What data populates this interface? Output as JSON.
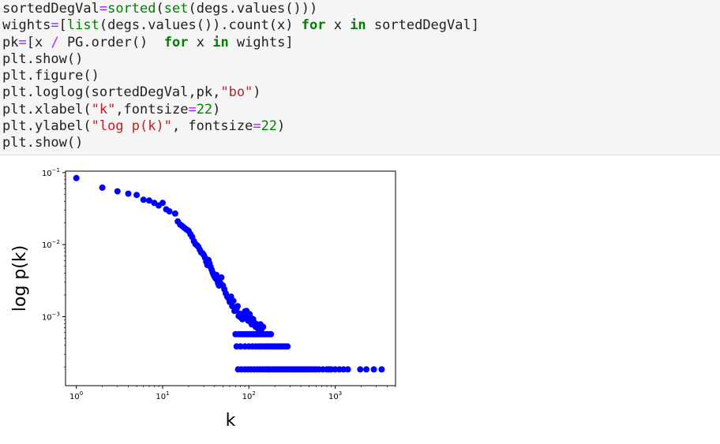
{
  "code_cell": {
    "lines": [
      [
        {
          "t": "sortedDegVal",
          "c": ""
        },
        {
          "t": "=",
          "c": "op"
        },
        {
          "t": "sorted",
          "c": "bi"
        },
        {
          "t": "(",
          "c": ""
        },
        {
          "t": "set",
          "c": "bi"
        },
        {
          "t": "(degs.values()))",
          "c": ""
        }
      ],
      [
        {
          "t": "wights",
          "c": ""
        },
        {
          "t": "=",
          "c": "op"
        },
        {
          "t": "[",
          "c": ""
        },
        {
          "t": "list",
          "c": "bi"
        },
        {
          "t": "(degs.values()).count(x) ",
          "c": ""
        },
        {
          "t": "for",
          "c": "kw"
        },
        {
          "t": " x ",
          "c": ""
        },
        {
          "t": "in",
          "c": "kw"
        },
        {
          "t": " sortedDegVal]",
          "c": ""
        }
      ],
      [
        {
          "t": "pk",
          "c": ""
        },
        {
          "t": "=",
          "c": "op"
        },
        {
          "t": "[x ",
          "c": ""
        },
        {
          "t": "/",
          "c": "op"
        },
        {
          "t": " PG.order()  ",
          "c": ""
        },
        {
          "t": "for",
          "c": "kw"
        },
        {
          "t": " x ",
          "c": ""
        },
        {
          "t": "in",
          "c": "kw"
        },
        {
          "t": " wights]",
          "c": ""
        }
      ],
      [
        {
          "t": "plt.show()",
          "c": ""
        }
      ],
      [
        {
          "t": "plt.figure()",
          "c": ""
        }
      ],
      [
        {
          "t": "plt.loglog(sortedDegVal,pk,",
          "c": ""
        },
        {
          "t": "\"bo\"",
          "c": "st"
        },
        {
          "t": ")",
          "c": ""
        }
      ],
      [
        {
          "t": "plt.xlabel(",
          "c": ""
        },
        {
          "t": "\"k\"",
          "c": "st"
        },
        {
          "t": ",fontsize",
          "c": ""
        },
        {
          "t": "=",
          "c": "op"
        },
        {
          "t": "22",
          "c": "nm"
        },
        {
          "t": ")",
          "c": ""
        }
      ],
      [
        {
          "t": "plt.ylabel(",
          "c": ""
        },
        {
          "t": "\"log p(k)\"",
          "c": "st"
        },
        {
          "t": ", fontsize",
          "c": ""
        },
        {
          "t": "=",
          "c": "op"
        },
        {
          "t": "22",
          "c": "nm"
        },
        {
          "t": ")",
          "c": ""
        }
      ],
      [
        {
          "t": "plt.show()",
          "c": ""
        }
      ]
    ]
  },
  "chart_data": {
    "type": "scatter",
    "scale": "loglog",
    "marker_color": "#0000ff",
    "xlabel": "k",
    "ylabel": "log p(k)",
    "xlim": [
      0.75,
      5000
    ],
    "ylim": [
      0.00011,
      0.105
    ],
    "x_ticks": [
      {
        "value": 1,
        "base": "10",
        "exp": "0"
      },
      {
        "value": 10,
        "base": "10",
        "exp": "1"
      },
      {
        "value": 100,
        "base": "10",
        "exp": "2"
      },
      {
        "value": 1000,
        "base": "10",
        "exp": "3"
      }
    ],
    "y_ticks": [
      {
        "value": 0.1,
        "base": "10",
        "exp": "−1"
      },
      {
        "value": 0.01,
        "base": "10",
        "exp": "−2"
      },
      {
        "value": 0.001,
        "base": "10",
        "exp": "−3"
      }
    ],
    "points": [
      [
        1,
        0.084
      ],
      [
        2,
        0.062
      ],
      [
        3,
        0.055
      ],
      [
        4,
        0.051
      ],
      [
        5,
        0.049
      ],
      [
        6,
        0.042
      ],
      [
        7,
        0.041
      ],
      [
        8,
        0.038
      ],
      [
        9,
        0.035
      ],
      [
        10,
        0.038
      ],
      [
        11,
        0.031
      ],
      [
        12,
        0.029
      ],
      [
        14,
        0.027
      ],
      [
        15,
        0.021
      ],
      [
        16,
        0.019
      ],
      [
        17,
        0.018
      ],
      [
        18,
        0.017
      ],
      [
        19,
        0.0162
      ],
      [
        20,
        0.0155
      ],
      [
        21,
        0.014
      ],
      [
        22,
        0.0128
      ],
      [
        23,
        0.0112
      ],
      [
        24,
        0.0102
      ],
      [
        25,
        0.0098
      ],
      [
        26,
        0.0093
      ],
      [
        27,
        0.0085
      ],
      [
        28,
        0.0078
      ],
      [
        29,
        0.0076
      ],
      [
        30,
        0.0072
      ],
      [
        31,
        0.0066
      ],
      [
        32,
        0.0058
      ],
      [
        33,
        0.0052
      ],
      [
        34,
        0.0061
      ],
      [
        35,
        0.0055
      ],
      [
        36,
        0.0049
      ],
      [
        37,
        0.0045
      ],
      [
        38,
        0.0041
      ],
      [
        39,
        0.0038
      ],
      [
        40,
        0.0036
      ],
      [
        41,
        0.0034
      ],
      [
        42,
        0.0038
      ],
      [
        43,
        0.0032
      ],
      [
        44,
        0.0029
      ],
      [
        45,
        0.0027
      ],
      [
        46,
        0.003
      ],
      [
        47,
        0.0029
      ],
      [
        48,
        0.0035
      ],
      [
        50,
        0.0027
      ],
      [
        52,
        0.0024
      ],
      [
        54,
        0.0021
      ],
      [
        56,
        0.0019
      ],
      [
        58,
        0.0018
      ],
      [
        60,
        0.0016
      ],
      [
        62,
        0.0019
      ],
      [
        64,
        0.0014
      ],
      [
        66,
        0.00165
      ],
      [
        68,
        0.0012
      ],
      [
        70,
        0.00125
      ],
      [
        72,
        0.0013
      ],
      [
        74,
        0.0014
      ],
      [
        76,
        0.00102
      ],
      [
        78,
        0.0011
      ],
      [
        80,
        0.00098
      ],
      [
        82,
        0.00105
      ],
      [
        84,
        0.00092
      ],
      [
        86,
        0.00108
      ],
      [
        88,
        0.00095
      ],
      [
        90,
        0.00118
      ],
      [
        92,
        0.0011
      ],
      [
        94,
        0.0012
      ],
      [
        96,
        0.00098
      ],
      [
        98,
        0.00088
      ],
      [
        100,
        0.00095
      ],
      [
        102,
        0.00108
      ],
      [
        104,
        0.00085
      ],
      [
        106,
        0.00095
      ],
      [
        108,
        0.00078
      ],
      [
        110,
        0.00085
      ],
      [
        112,
        0.00092
      ],
      [
        116,
        0.00082
      ],
      [
        120,
        0.00072
      ],
      [
        124,
        0.00078
      ],
      [
        128,
        0.00068
      ],
      [
        132,
        0.00072
      ],
      [
        136,
        0.00078
      ],
      [
        140,
        0.00068
      ],
      [
        146,
        0.00072
      ],
      [
        72,
        0.000385
      ],
      [
        80,
        0.000385
      ],
      [
        90,
        0.000385
      ],
      [
        100,
        0.000385
      ],
      [
        110,
        0.000385
      ],
      [
        120,
        0.000385
      ],
      [
        130,
        0.000385
      ],
      [
        140,
        0.000385
      ],
      [
        150,
        0.000385
      ],
      [
        160,
        0.000385
      ],
      [
        170,
        0.000385
      ],
      [
        70,
        0.00057
      ],
      [
        76,
        0.00057
      ],
      [
        82,
        0.00057
      ],
      [
        88,
        0.00057
      ],
      [
        94,
        0.00057
      ],
      [
        100,
        0.00057
      ],
      [
        106,
        0.00057
      ],
      [
        112,
        0.00057
      ],
      [
        118,
        0.00057
      ],
      [
        124,
        0.00057
      ],
      [
        130,
        0.00057
      ],
      [
        136,
        0.00057
      ],
      [
        142,
        0.00057
      ],
      [
        150,
        0.00057
      ],
      [
        160,
        0.00057
      ],
      [
        170,
        0.00057
      ],
      [
        180,
        0.00057
      ],
      [
        180,
        0.000385
      ],
      [
        190,
        0.000385
      ],
      [
        200,
        0.000385
      ],
      [
        212,
        0.000385
      ],
      [
        224,
        0.000385
      ],
      [
        236,
        0.000385
      ],
      [
        250,
        0.000385
      ],
      [
        265,
        0.000385
      ],
      [
        280,
        0.000385
      ],
      [
        75,
        0.000185
      ],
      [
        82,
        0.000185
      ],
      [
        90,
        0.000185
      ],
      [
        98,
        0.000185
      ],
      [
        106,
        0.000185
      ],
      [
        115,
        0.000185
      ],
      [
        125,
        0.000185
      ],
      [
        135,
        0.000185
      ],
      [
        145,
        0.000185
      ],
      [
        155,
        0.000185
      ],
      [
        165,
        0.000185
      ],
      [
        175,
        0.000185
      ],
      [
        188,
        0.000185
      ],
      [
        200,
        0.000185
      ],
      [
        215,
        0.000185
      ],
      [
        230,
        0.000185
      ],
      [
        245,
        0.000185
      ],
      [
        260,
        0.000185
      ],
      [
        278,
        0.000185
      ],
      [
        295,
        0.000185
      ],
      [
        315,
        0.000185
      ],
      [
        335,
        0.000185
      ],
      [
        355,
        0.000185
      ],
      [
        380,
        0.000185
      ],
      [
        405,
        0.000185
      ],
      [
        430,
        0.000185
      ],
      [
        460,
        0.000185
      ],
      [
        490,
        0.000185
      ],
      [
        520,
        0.000185
      ],
      [
        560,
        0.000185
      ],
      [
        600,
        0.000185
      ],
      [
        650,
        0.000185
      ],
      [
        720,
        0.000185
      ],
      [
        800,
        0.000185
      ],
      [
        850,
        0.000185
      ],
      [
        900,
        0.000185
      ],
      [
        1000,
        0.000185
      ],
      [
        1120,
        0.000185
      ],
      [
        1250,
        0.000185
      ],
      [
        1400,
        0.000185
      ],
      [
        1950,
        0.000185
      ],
      [
        2300,
        0.000185
      ],
      [
        2800,
        0.000185
      ],
      [
        3450,
        0.000185
      ]
    ]
  }
}
